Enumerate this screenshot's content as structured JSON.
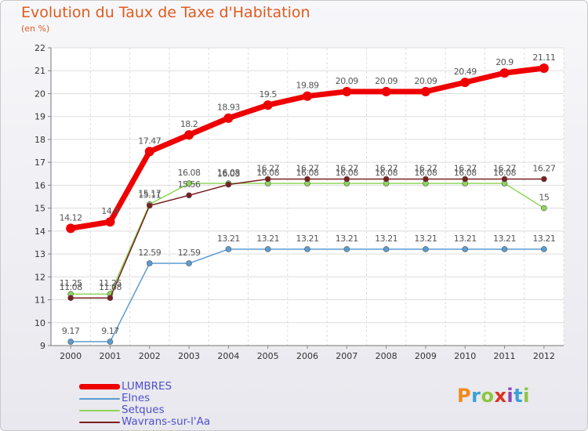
{
  "title": "Evolution du Taux de Taxe d'Habitation",
  "subtitle": "(en %)",
  "logo": {
    "text": "Proxiti",
    "letter_colors": [
      "#f08a1c",
      "#3aa0d8",
      "#8cc63f",
      "#e0301e",
      "#8e44ad",
      "#3aa0d8",
      "#8cc63f"
    ]
  },
  "chart_data": {
    "type": "line",
    "x": [
      "2000",
      "2001",
      "2002",
      "2003",
      "2004",
      "2005",
      "2006",
      "2007",
      "2008",
      "2009",
      "2010",
      "2011",
      "2012"
    ],
    "ylim": [
      9,
      22
    ],
    "yticks": [
      "9",
      "10",
      "11",
      "12",
      "13",
      "14",
      "15",
      "16",
      "17",
      "18",
      "19",
      "20",
      "21",
      "22"
    ],
    "grid": true,
    "legend_placement": "bottom-left",
    "series": [
      {
        "name": "LUMBRES",
        "color": "#ee0000",
        "values": [
          14.12,
          14.4,
          17.47,
          18.2,
          18.93,
          19.5,
          19.89,
          20.09,
          20.09,
          20.09,
          20.49,
          20.9,
          21.11
        ],
        "labels": [
          "14.12",
          "14.4",
          "17.47",
          "18.2",
          "18.93",
          "19.5",
          "19.89",
          "20.09",
          "20.09",
          "20.09",
          "20.49",
          "20.9",
          "21.11"
        ]
      },
      {
        "name": "Elnes",
        "color": "#5b9bd0",
        "values": [
          9.17,
          9.17,
          12.59,
          12.59,
          13.21,
          13.21,
          13.21,
          13.21,
          13.21,
          13.21,
          13.21,
          13.21,
          13.21
        ],
        "labels": [
          "9.17",
          "9.17",
          "12.59",
          "12.59",
          "13.21",
          "13.21",
          "13.21",
          "13.21",
          "13.21",
          "13.21",
          "13.21",
          "13.21",
          "13.21"
        ]
      },
      {
        "name": "Setques",
        "color": "#8ed65a",
        "values": [
          11.25,
          11.25,
          15.17,
          16.08,
          16.08,
          16.08,
          16.08,
          16.08,
          16.08,
          16.08,
          16.08,
          16.08,
          15
        ],
        "labels": [
          "11.25",
          "11.25",
          "15.17",
          "16.08",
          "16.08",
          "16.08",
          "16.08",
          "16.08",
          "16.08",
          "16.08",
          "16.08",
          "16.08",
          "15"
        ]
      },
      {
        "name": "Wavrans-sur-l'Aa",
        "color": "#7a1f1f",
        "values": [
          11.08,
          11.08,
          15.11,
          15.56,
          16.03,
          16.27,
          16.27,
          16.27,
          16.27,
          16.27,
          16.27,
          16.27,
          16.27
        ],
        "labels": [
          "11.08",
          "11.08",
          "15.11",
          "15.56",
          "16.03",
          "16.27",
          "16.27",
          "16.27",
          "16.27",
          "16.27",
          "16.27",
          "16.27",
          "16.27"
        ]
      }
    ]
  }
}
